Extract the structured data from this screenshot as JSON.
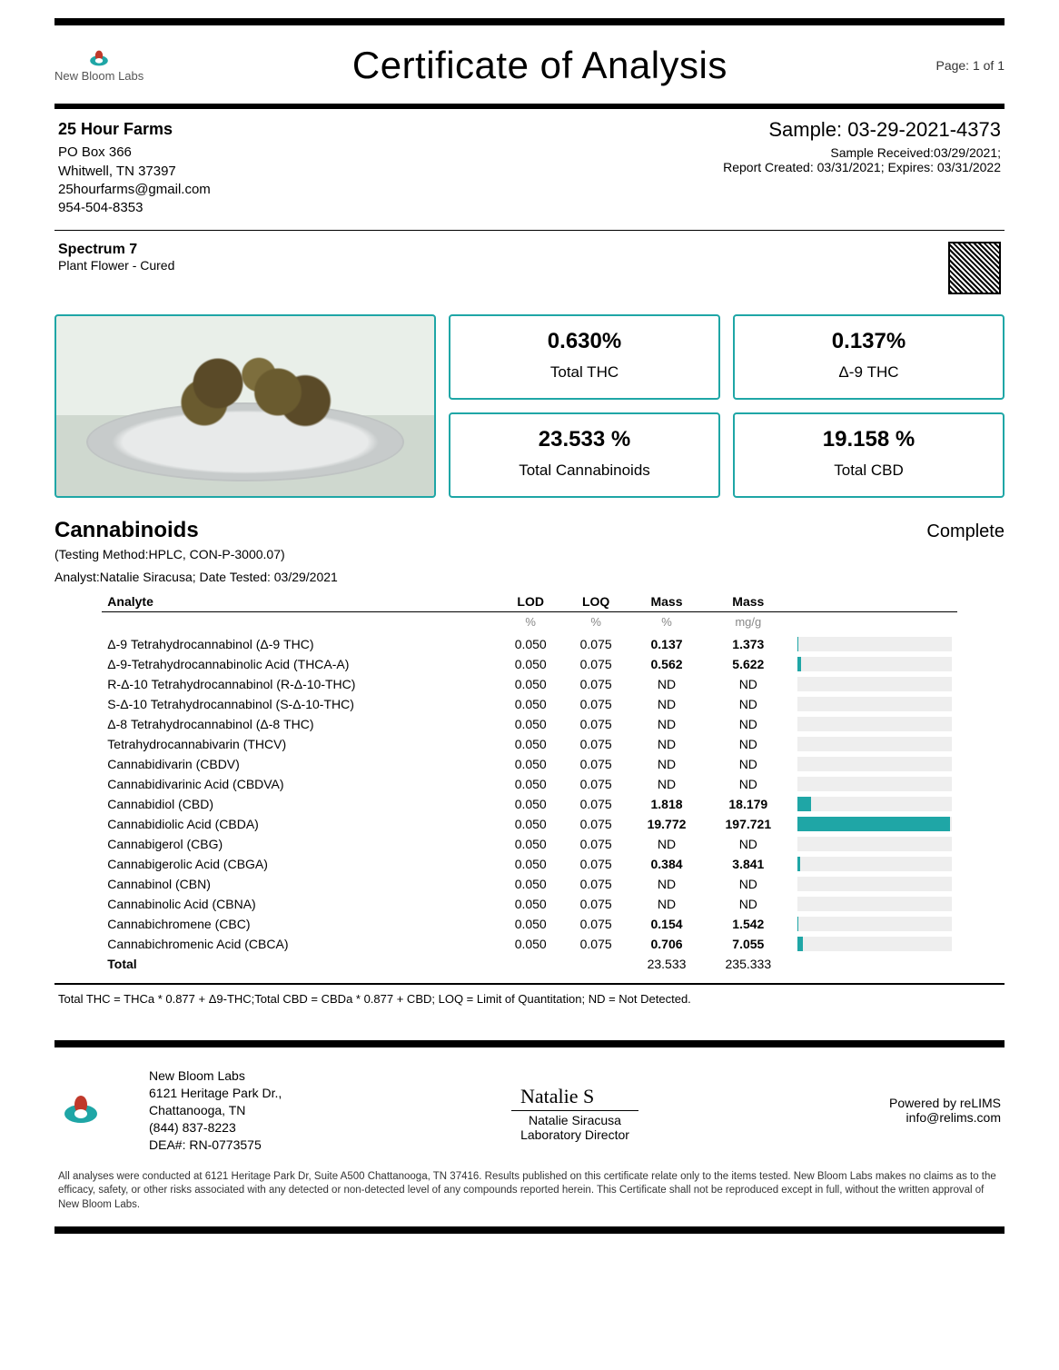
{
  "page_label": "Page: 1 of 1",
  "doc_title": "Certificate of Analysis",
  "lab_brand": "New Bloom Labs",
  "client": {
    "name": "25 Hour Farms",
    "addr1": "PO Box 366",
    "addr2": "Whitwell, TN 37397",
    "email": "25hourfarms@gmail.com",
    "phone": "954-504-8353"
  },
  "sample": {
    "id_label": "Sample: 03-29-2021-4373",
    "received": "Sample Received:03/29/2021;",
    "report_line": "Report Created: 03/31/2021; Expires: 03/31/2022",
    "spectrum": "Spectrum 7",
    "spectrum_sub": "Plant Flower - Cured"
  },
  "stats": [
    {
      "value": "0.630%",
      "label": "Total THC"
    },
    {
      "value": "0.137%",
      "label": "Δ-9 THC"
    },
    {
      "value": "23.533 %",
      "label": "Total Cannabinoids"
    },
    {
      "value": "19.158 %",
      "label": "Total CBD"
    }
  ],
  "section": {
    "title": "Cannabinoids",
    "status": "Complete",
    "method": "(Testing Method:HPLC, CON-P-3000.07)",
    "analyst": "Analyst:Natalie Siracusa; Date Tested: 03/29/2021"
  },
  "columns": {
    "c0": "Analyte",
    "c1": "LOD",
    "c2": "LOQ",
    "c3": "Mass",
    "c4": "Mass",
    "u1": "%",
    "u2": "%",
    "u3": "%",
    "u4": "mg/g"
  },
  "bar_max": 200,
  "bar_color": "#1fa6a6",
  "bar_track": "#eeeeee",
  "analytes": [
    {
      "name": "Δ-9 Tetrahydrocannabinol (Δ-9 THC)",
      "lod": "0.050",
      "loq": "0.075",
      "mp": "0.137",
      "mg": "1.373",
      "bold": true,
      "bar": 1.373
    },
    {
      "name": "Δ-9-Tetrahydrocannabinolic Acid (THCA-A)",
      "lod": "0.050",
      "loq": "0.075",
      "mp": "0.562",
      "mg": "5.622",
      "bold": true,
      "bar": 5.622
    },
    {
      "name": "R-Δ-10 Tetrahydrocannabinol (R-Δ-10-THC)",
      "lod": "0.050",
      "loq": "0.075",
      "mp": "ND",
      "mg": "ND",
      "bold": false,
      "bar": 0
    },
    {
      "name": "S-Δ-10 Tetrahydrocannabinol (S-Δ-10-THC)",
      "lod": "0.050",
      "loq": "0.075",
      "mp": "ND",
      "mg": "ND",
      "bold": false,
      "bar": 0
    },
    {
      "name": "Δ-8 Tetrahydrocannabinol (Δ-8 THC)",
      "lod": "0.050",
      "loq": "0.075",
      "mp": "ND",
      "mg": "ND",
      "bold": false,
      "bar": 0
    },
    {
      "name": "Tetrahydrocannabivarin (THCV)",
      "lod": "0.050",
      "loq": "0.075",
      "mp": "ND",
      "mg": "ND",
      "bold": false,
      "bar": 0
    },
    {
      "name": "Cannabidivarin (CBDV)",
      "lod": "0.050",
      "loq": "0.075",
      "mp": "ND",
      "mg": "ND",
      "bold": false,
      "bar": 0
    },
    {
      "name": "Cannabidivarinic Acid (CBDVA)",
      "lod": "0.050",
      "loq": "0.075",
      "mp": "ND",
      "mg": "ND",
      "bold": false,
      "bar": 0
    },
    {
      "name": "Cannabidiol (CBD)",
      "lod": "0.050",
      "loq": "0.075",
      "mp": "1.818",
      "mg": "18.179",
      "bold": true,
      "bar": 18.179
    },
    {
      "name": "Cannabidiolic Acid (CBDA)",
      "lod": "0.050",
      "loq": "0.075",
      "mp": "19.772",
      "mg": "197.721",
      "bold": true,
      "bar": 197.721
    },
    {
      "name": "Cannabigerol (CBG)",
      "lod": "0.050",
      "loq": "0.075",
      "mp": "ND",
      "mg": "ND",
      "bold": false,
      "bar": 0
    },
    {
      "name": "Cannabigerolic Acid (CBGA)",
      "lod": "0.050",
      "loq": "0.075",
      "mp": "0.384",
      "mg": "3.841",
      "bold": true,
      "bar": 3.841
    },
    {
      "name": "Cannabinol (CBN)",
      "lod": "0.050",
      "loq": "0.075",
      "mp": "ND",
      "mg": "ND",
      "bold": false,
      "bar": 0
    },
    {
      "name": "Cannabinolic Acid (CBNA)",
      "lod": "0.050",
      "loq": "0.075",
      "mp": "ND",
      "mg": "ND",
      "bold": false,
      "bar": 0
    },
    {
      "name": "Cannabichromene (CBC)",
      "lod": "0.050",
      "loq": "0.075",
      "mp": "0.154",
      "mg": "1.542",
      "bold": true,
      "bar": 1.542
    },
    {
      "name": "Cannabichromenic Acid (CBCA)",
      "lod": "0.050",
      "loq": "0.075",
      "mp": "0.706",
      "mg": "7.055",
      "bold": true,
      "bar": 7.055
    }
  ],
  "totals": {
    "label": "Total",
    "mp": "23.533",
    "mg": "235.333"
  },
  "formula": "Total THC = THCa * 0.877 + Δ9-THC;Total CBD = CBDa * 0.877 + CBD; LOQ = Limit of Quantitation; ND = Not Detected.",
  "lab": {
    "name": "New Bloom Labs",
    "addr1": "6121 Heritage Park Dr.,",
    "addr2": "Chattanooga, TN",
    "phone": "(844) 837-8223",
    "dea": "DEA#: RN-0773575"
  },
  "sign": {
    "name": "Natalie Siracusa",
    "title": "Laboratory Director"
  },
  "powered": {
    "line1": "Powered by reLIMS",
    "line2": "info@relims.com"
  },
  "disclaimer": "All analyses were conducted at 6121 Heritage Park Dr, Suite A500 Chattanooga, TN 37416. Results published on this certificate relate only to the items tested. New Bloom Labs makes no claims as to the efficacy, safety, or other risks associated with any detected or non-detected level of any compounds reported herein. This Certificate shall not be reproduced except in full, without the written approval of New Bloom Labs."
}
